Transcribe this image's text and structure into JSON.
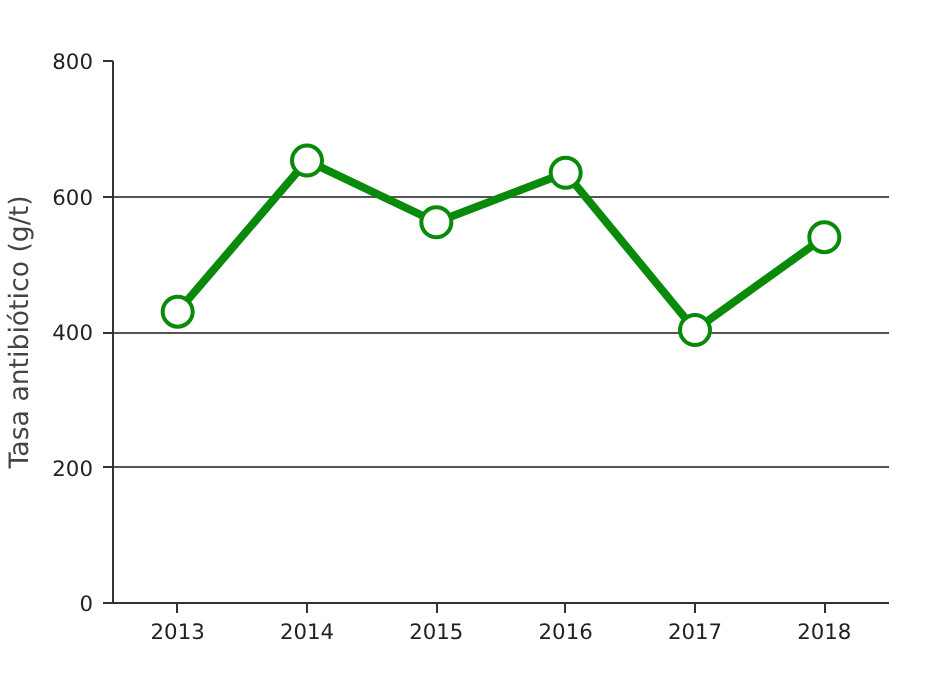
{
  "chart_data": {
    "type": "line",
    "ylabel": "Tasa antibiótico (g/t)",
    "categories": [
      "2013",
      "2014",
      "2015",
      "2016",
      "2017",
      "2018"
    ],
    "series": [
      {
        "color": "#0a8a0a",
        "values": [
          430,
          653,
          562,
          635,
          403,
          540
        ]
      }
    ],
    "ylim": [
      0,
      800
    ],
    "yticks": [
      0,
      200,
      400,
      600,
      800
    ],
    "grid": "y",
    "marker": "circle",
    "line_style": "solid"
  }
}
